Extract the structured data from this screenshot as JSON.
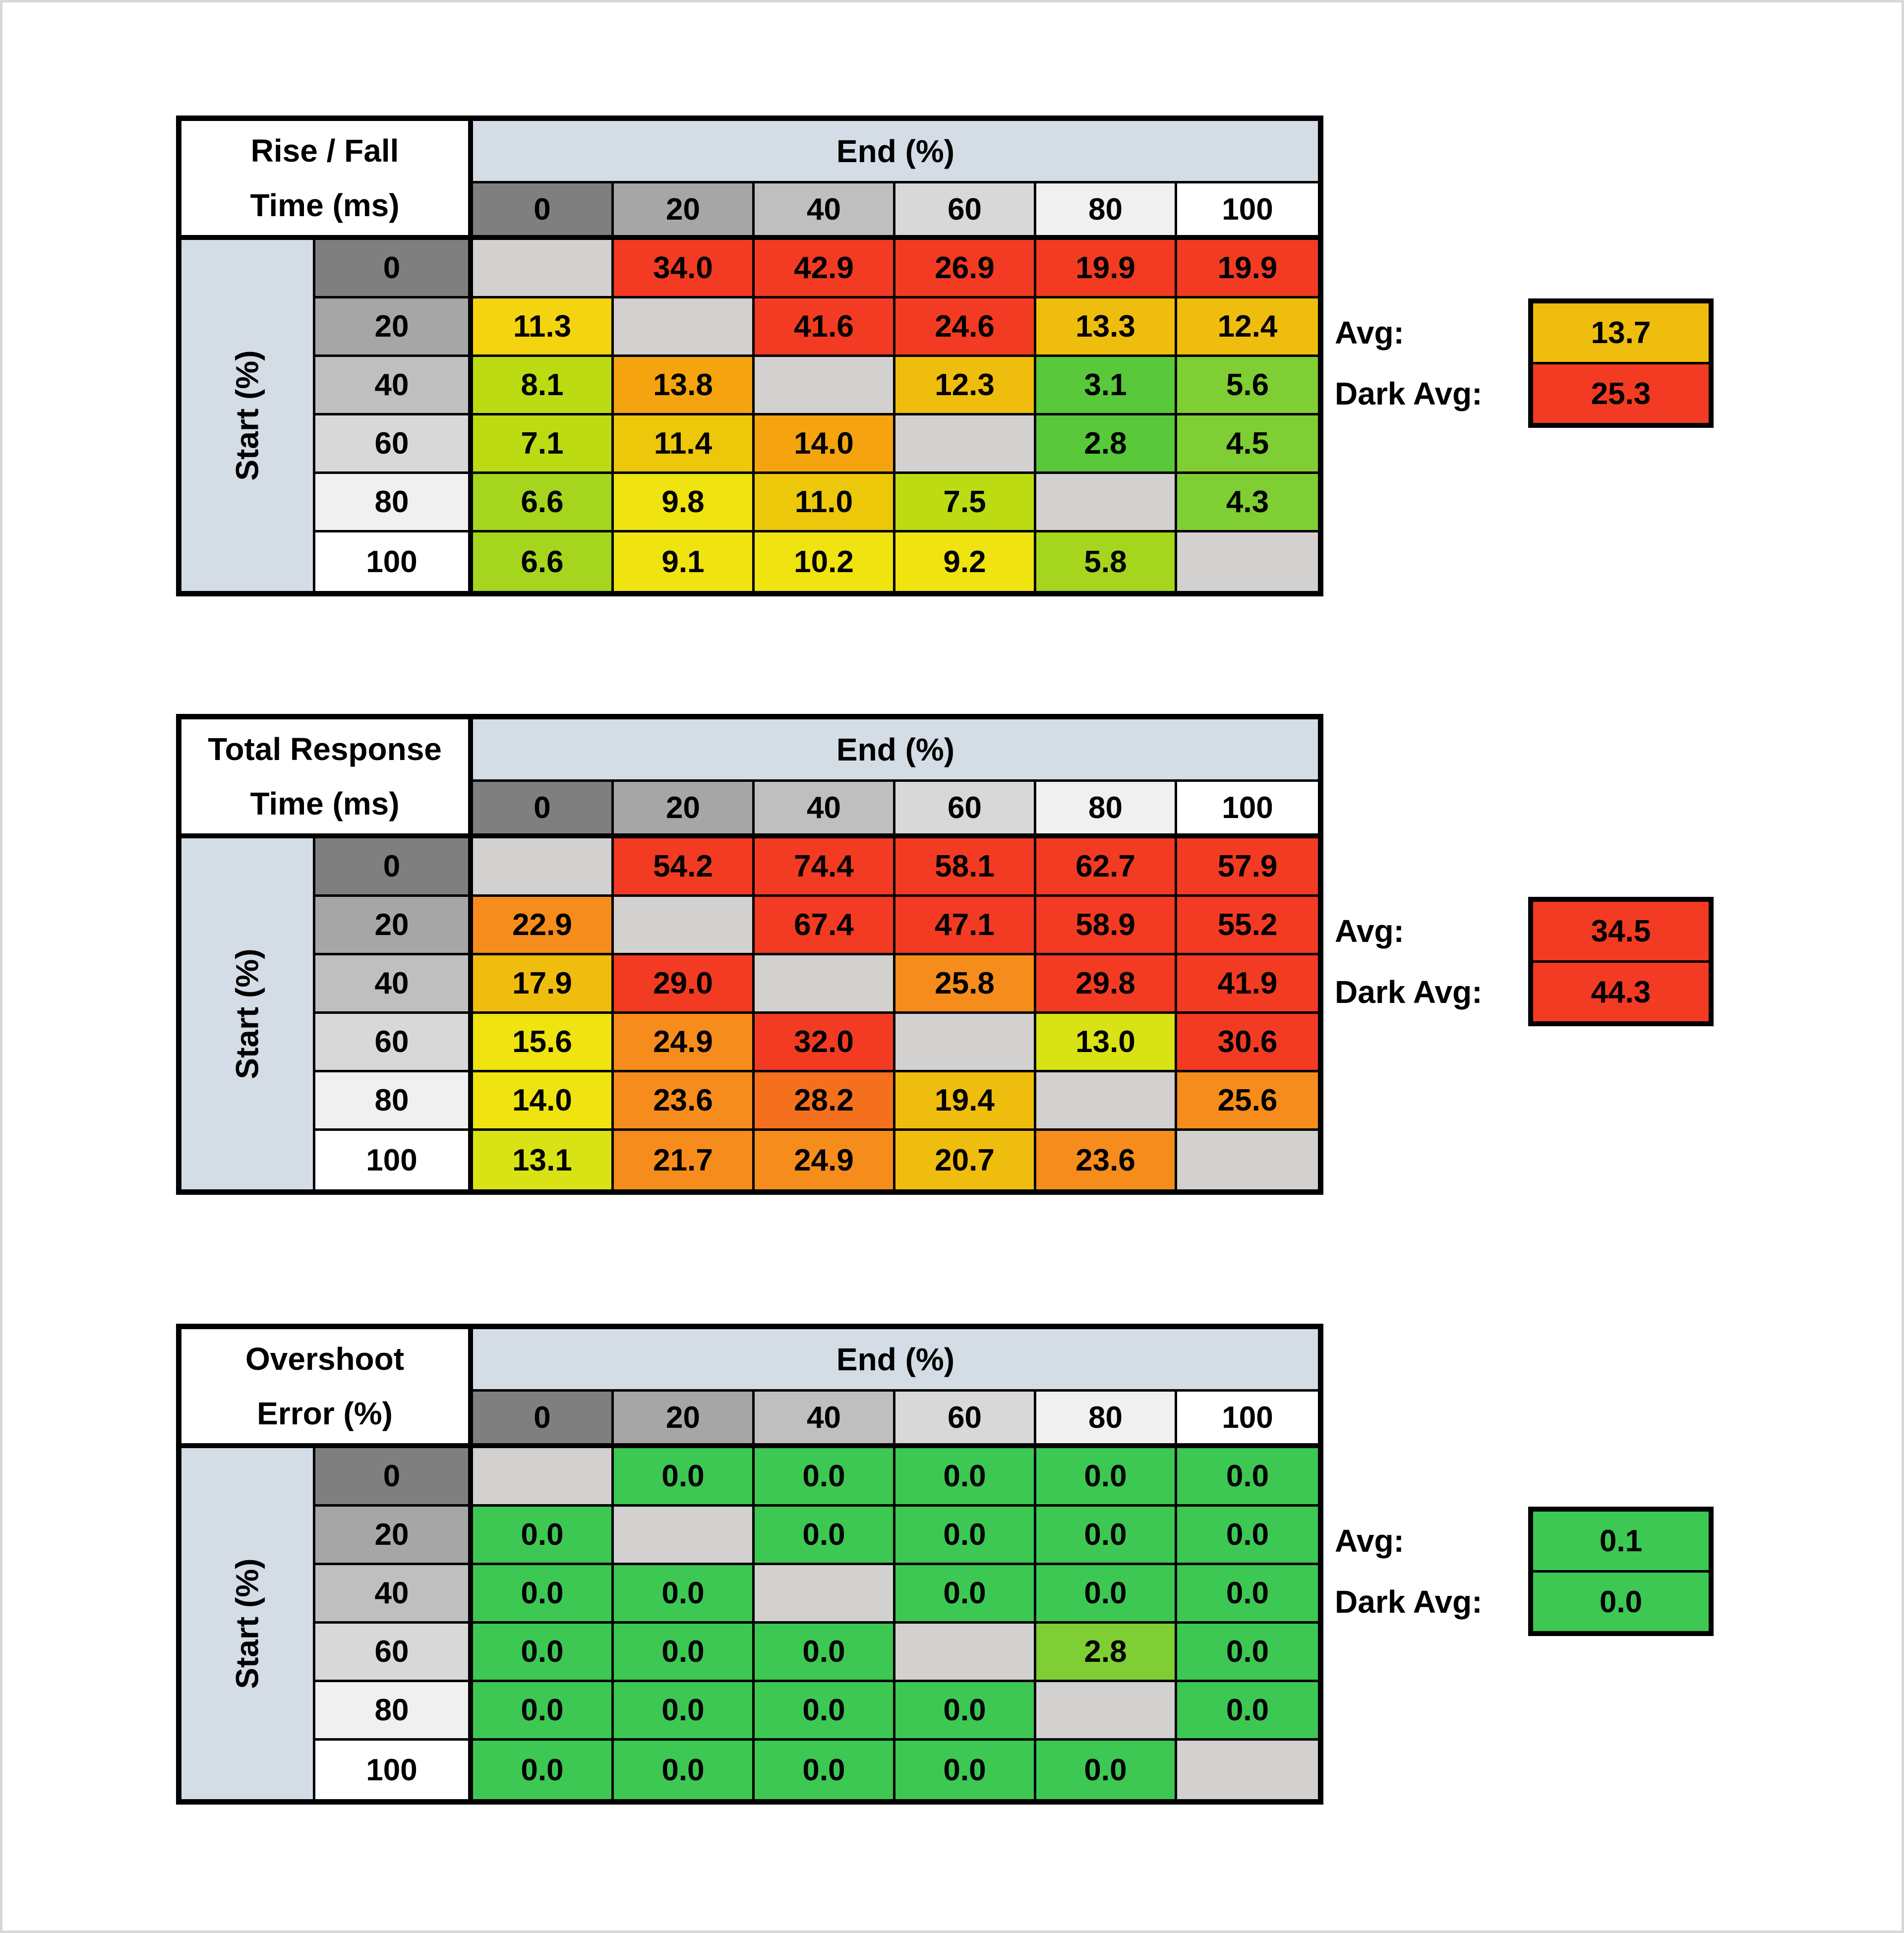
{
  "meta": {
    "background": "#ffffff",
    "frame_color": "#d8d8d8",
    "grid_color": "#000000",
    "band_blue": "#d4dce6",
    "diag_gray": "#d3d1d0",
    "text_color": "#000000"
  },
  "palette": {
    "red": "#f23b22",
    "deep_orange": "#f4701d",
    "orange": "#f68c1c",
    "light_orange": "#f5a40f",
    "amber": "#efbd0d",
    "gold": "#edc70a",
    "gold_yellow": "#f4d310",
    "yellow": "#efe310",
    "chartreuse": "#d9e214",
    "lime_yellow": "#bcdb12",
    "yellow_green": "#a5d51c",
    "light_green": "#7fce33",
    "green": "#5ac83b",
    "kelly_green": "#3dc753"
  },
  "axis": {
    "end_label": "End (%)",
    "start_label": "Start (%)",
    "levels": [
      "0",
      "20",
      "40",
      "60",
      "80",
      "100"
    ],
    "level_shades": [
      "#7f7f7f",
      "#a6a6a6",
      "#bfbfbf",
      "#d8d8d8",
      "#f0f0f0",
      "#ffffff"
    ]
  },
  "labels": {
    "avg": "Avg:",
    "dark_avg": "Dark Avg:"
  },
  "chart_data": [
    {
      "type": "heatmap",
      "id": "rise-fall",
      "title": "Rise / Fall Time (ms)",
      "title_lines": [
        "Rise / Fall",
        "Time (ms)"
      ],
      "xlabel": "End (%)",
      "ylabel": "Start (%)",
      "x_categories": [
        0,
        20,
        40,
        60,
        80,
        100
      ],
      "y_categories": [
        0,
        20,
        40,
        60,
        80,
        100
      ],
      "rows": [
        {
          "label": "0",
          "cells": [
            null,
            {
              "v": "34.0",
              "c": "red"
            },
            {
              "v": "42.9",
              "c": "red"
            },
            {
              "v": "26.9",
              "c": "red"
            },
            {
              "v": "19.9",
              "c": "red"
            },
            {
              "v": "19.9",
              "c": "red"
            }
          ]
        },
        {
          "label": "20",
          "cells": [
            {
              "v": "11.3",
              "c": "gold_yellow"
            },
            null,
            {
              "v": "41.6",
              "c": "red"
            },
            {
              "v": "24.6",
              "c": "red"
            },
            {
              "v": "13.3",
              "c": "amber"
            },
            {
              "v": "12.4",
              "c": "amber"
            }
          ]
        },
        {
          "label": "40",
          "cells": [
            {
              "v": "8.1",
              "c": "lime_yellow"
            },
            {
              "v": "13.8",
              "c": "light_orange"
            },
            null,
            {
              "v": "12.3",
              "c": "amber"
            },
            {
              "v": "3.1",
              "c": "green"
            },
            {
              "v": "5.6",
              "c": "light_green"
            }
          ]
        },
        {
          "label": "60",
          "cells": [
            {
              "v": "7.1",
              "c": "lime_yellow"
            },
            {
              "v": "11.4",
              "c": "gold"
            },
            {
              "v": "14.0",
              "c": "light_orange"
            },
            null,
            {
              "v": "2.8",
              "c": "green"
            },
            {
              "v": "4.5",
              "c": "light_green"
            }
          ]
        },
        {
          "label": "80",
          "cells": [
            {
              "v": "6.6",
              "c": "yellow_green"
            },
            {
              "v": "9.8",
              "c": "yellow"
            },
            {
              "v": "11.0",
              "c": "gold"
            },
            {
              "v": "7.5",
              "c": "lime_yellow"
            },
            null,
            {
              "v": "4.3",
              "c": "light_green"
            }
          ]
        },
        {
          "label": "100",
          "cells": [
            {
              "v": "6.6",
              "c": "yellow_green"
            },
            {
              "v": "9.1",
              "c": "yellow"
            },
            {
              "v": "10.2",
              "c": "yellow"
            },
            {
              "v": "9.2",
              "c": "yellow"
            },
            {
              "v": "5.8",
              "c": "yellow_green"
            },
            null
          ]
        }
      ],
      "avg": {
        "v": "13.7",
        "c": "amber"
      },
      "dark_avg": {
        "v": "25.3",
        "c": "red"
      }
    },
    {
      "type": "heatmap",
      "id": "total-response",
      "title": "Total Response Time (ms)",
      "title_lines": [
        "Total Response",
        "Time (ms)"
      ],
      "xlabel": "End (%)",
      "ylabel": "Start (%)",
      "x_categories": [
        0,
        20,
        40,
        60,
        80,
        100
      ],
      "y_categories": [
        0,
        20,
        40,
        60,
        80,
        100
      ],
      "rows": [
        {
          "label": "0",
          "cells": [
            null,
            {
              "v": "54.2",
              "c": "red"
            },
            {
              "v": "74.4",
              "c": "red"
            },
            {
              "v": "58.1",
              "c": "red"
            },
            {
              "v": "62.7",
              "c": "red"
            },
            {
              "v": "57.9",
              "c": "red"
            }
          ]
        },
        {
          "label": "20",
          "cells": [
            {
              "v": "22.9",
              "c": "orange"
            },
            null,
            {
              "v": "67.4",
              "c": "red"
            },
            {
              "v": "47.1",
              "c": "red"
            },
            {
              "v": "58.9",
              "c": "red"
            },
            {
              "v": "55.2",
              "c": "red"
            }
          ]
        },
        {
          "label": "40",
          "cells": [
            {
              "v": "17.9",
              "c": "amber"
            },
            {
              "v": "29.0",
              "c": "red"
            },
            null,
            {
              "v": "25.8",
              "c": "orange"
            },
            {
              "v": "29.8",
              "c": "red"
            },
            {
              "v": "41.9",
              "c": "red"
            }
          ]
        },
        {
          "label": "60",
          "cells": [
            {
              "v": "15.6",
              "c": "yellow"
            },
            {
              "v": "24.9",
              "c": "orange"
            },
            {
              "v": "32.0",
              "c": "red"
            },
            null,
            {
              "v": "13.0",
              "c": "chartreuse"
            },
            {
              "v": "30.6",
              "c": "red"
            }
          ]
        },
        {
          "label": "80",
          "cells": [
            {
              "v": "14.0",
              "c": "yellow"
            },
            {
              "v": "23.6",
              "c": "orange"
            },
            {
              "v": "28.2",
              "c": "deep_orange"
            },
            {
              "v": "19.4",
              "c": "amber"
            },
            null,
            {
              "v": "25.6",
              "c": "orange"
            }
          ]
        },
        {
          "label": "100",
          "cells": [
            {
              "v": "13.1",
              "c": "chartreuse"
            },
            {
              "v": "21.7",
              "c": "orange"
            },
            {
              "v": "24.9",
              "c": "orange"
            },
            {
              "v": "20.7",
              "c": "amber"
            },
            {
              "v": "23.6",
              "c": "orange"
            },
            null
          ]
        }
      ],
      "avg": {
        "v": "34.5",
        "c": "red"
      },
      "dark_avg": {
        "v": "44.3",
        "c": "red"
      }
    },
    {
      "type": "heatmap",
      "id": "overshoot",
      "title": "Overshoot Error (%)",
      "title_lines": [
        "Overshoot",
        "Error (%)"
      ],
      "xlabel": "End (%)",
      "ylabel": "Start (%)",
      "x_categories": [
        0,
        20,
        40,
        60,
        80,
        100
      ],
      "y_categories": [
        0,
        20,
        40,
        60,
        80,
        100
      ],
      "rows": [
        {
          "label": "0",
          "cells": [
            null,
            {
              "v": "0.0",
              "c": "kelly_green"
            },
            {
              "v": "0.0",
              "c": "kelly_green"
            },
            {
              "v": "0.0",
              "c": "kelly_green"
            },
            {
              "v": "0.0",
              "c": "kelly_green"
            },
            {
              "v": "0.0",
              "c": "kelly_green"
            }
          ]
        },
        {
          "label": "20",
          "cells": [
            {
              "v": "0.0",
              "c": "kelly_green"
            },
            null,
            {
              "v": "0.0",
              "c": "kelly_green"
            },
            {
              "v": "0.0",
              "c": "kelly_green"
            },
            {
              "v": "0.0",
              "c": "kelly_green"
            },
            {
              "v": "0.0",
              "c": "kelly_green"
            }
          ]
        },
        {
          "label": "40",
          "cells": [
            {
              "v": "0.0",
              "c": "kelly_green"
            },
            {
              "v": "0.0",
              "c": "kelly_green"
            },
            null,
            {
              "v": "0.0",
              "c": "kelly_green"
            },
            {
              "v": "0.0",
              "c": "kelly_green"
            },
            {
              "v": "0.0",
              "c": "kelly_green"
            }
          ]
        },
        {
          "label": "60",
          "cells": [
            {
              "v": "0.0",
              "c": "kelly_green"
            },
            {
              "v": "0.0",
              "c": "kelly_green"
            },
            {
              "v": "0.0",
              "c": "kelly_green"
            },
            null,
            {
              "v": "2.8",
              "c": "light_green"
            },
            {
              "v": "0.0",
              "c": "kelly_green"
            }
          ]
        },
        {
          "label": "80",
          "cells": [
            {
              "v": "0.0",
              "c": "kelly_green"
            },
            {
              "v": "0.0",
              "c": "kelly_green"
            },
            {
              "v": "0.0",
              "c": "kelly_green"
            },
            {
              "v": "0.0",
              "c": "kelly_green"
            },
            null,
            {
              "v": "0.0",
              "c": "kelly_green"
            }
          ]
        },
        {
          "label": "100",
          "cells": [
            {
              "v": "0.0",
              "c": "kelly_green"
            },
            {
              "v": "0.0",
              "c": "kelly_green"
            },
            {
              "v": "0.0",
              "c": "kelly_green"
            },
            {
              "v": "0.0",
              "c": "kelly_green"
            },
            {
              "v": "0.0",
              "c": "kelly_green"
            },
            null
          ]
        }
      ],
      "avg": {
        "v": "0.1",
        "c": "kelly_green"
      },
      "dark_avg": {
        "v": "0.0",
        "c": "kelly_green"
      }
    }
  ]
}
